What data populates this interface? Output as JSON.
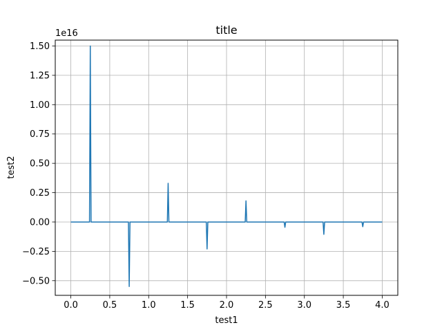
{
  "chart_data": {
    "type": "line",
    "title": "title",
    "xlabel": "test1",
    "ylabel": "test2",
    "y_offset_label": "1e16",
    "y_scale_exponent": 16,
    "xlim": [
      -0.2,
      4.2
    ],
    "ylim": [
      -0.625,
      1.55
    ],
    "x_ticks": [
      0.0,
      0.5,
      1.0,
      1.5,
      2.0,
      2.5,
      3.0,
      3.5,
      4.0
    ],
    "x_tick_labels": [
      "0.0",
      "0.5",
      "1.0",
      "1.5",
      "2.0",
      "2.5",
      "3.0",
      "3.5",
      "4.0"
    ],
    "y_ticks": [
      -0.5,
      -0.25,
      0.0,
      0.25,
      0.5,
      0.75,
      1.0,
      1.25,
      1.5
    ],
    "y_tick_labels": [
      "−0.50",
      "−0.25",
      "0.00",
      "0.25",
      "0.50",
      "0.75",
      "1.00",
      "1.25",
      "1.50"
    ],
    "grid": true,
    "series": [
      {
        "color": "#1f77b4",
        "x": [
          0.0,
          0.24,
          0.25,
          0.26,
          0.74,
          0.75,
          0.76,
          1.24,
          1.25,
          1.26,
          1.74,
          1.75,
          1.76,
          2.24,
          2.25,
          2.26,
          2.74,
          2.75,
          2.76,
          3.24,
          3.25,
          3.26,
          3.74,
          3.75,
          3.76,
          4.0
        ],
        "y": [
          0.0,
          0.0,
          1.5,
          0.0,
          0.0,
          -0.55,
          0.0,
          0.0,
          0.33,
          0.0,
          0.0,
          -0.23,
          0.0,
          0.0,
          0.18,
          0.0,
          0.0,
          -0.045,
          0.0,
          0.0,
          -0.105,
          0.0,
          0.0,
          -0.04,
          0.0,
          0.0
        ]
      }
    ]
  }
}
